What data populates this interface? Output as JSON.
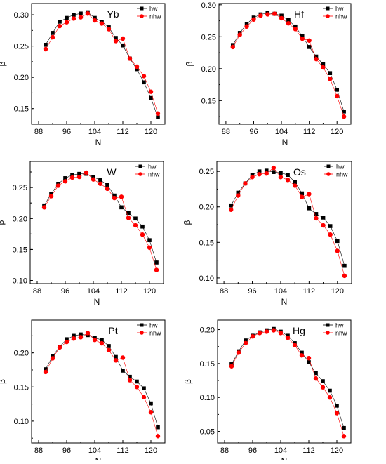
{
  "chart_data": [
    {
      "type": "line",
      "title": "Yb",
      "xlabel": "N",
      "ylabel": "β",
      "xlim": [
        86,
        124
      ],
      "ylim": [
        0.125,
        0.318
      ],
      "xticks": [
        88,
        96,
        104,
        112,
        120
      ],
      "yticks": [
        0.15,
        0.2,
        0.25,
        0.3
      ],
      "ytick_labels": [
        "0.15",
        "0.20",
        "0.25",
        "0.30"
      ],
      "legend": "top-right",
      "series": [
        {
          "name": "hw",
          "marker": "square",
          "color": "#000000",
          "x": [
            90,
            92,
            94,
            96,
            98,
            100,
            102,
            104,
            106,
            108,
            110,
            112,
            114,
            116,
            118,
            120,
            122
          ],
          "y": [
            0.252,
            0.271,
            0.289,
            0.295,
            0.3,
            0.302,
            0.304,
            0.295,
            0.289,
            0.28,
            0.263,
            0.251,
            0.23,
            0.213,
            0.192,
            0.167,
            0.136
          ]
        },
        {
          "name": "nhw",
          "marker": "circle",
          "color": "#ff0000",
          "x": [
            90,
            92,
            94,
            96,
            98,
            100,
            102,
            104,
            106,
            108,
            110,
            112,
            114,
            116,
            118,
            120,
            122
          ],
          "y": [
            0.245,
            0.264,
            0.282,
            0.288,
            0.294,
            0.296,
            0.302,
            0.291,
            0.286,
            0.277,
            0.258,
            0.262,
            0.23,
            0.217,
            0.202,
            0.177,
            0.142
          ]
        }
      ]
    },
    {
      "type": "line",
      "title": "Hf",
      "xlabel": "N",
      "ylabel": "β",
      "xlim": [
        86,
        124
      ],
      "ylim": [
        0.113,
        0.302
      ],
      "xticks": [
        88,
        96,
        104,
        112,
        120
      ],
      "yticks": [
        0.15,
        0.2,
        0.25,
        0.3
      ],
      "ytick_labels": [
        "0.15",
        "0.20",
        "0.25",
        "0.30"
      ],
      "legend": "top-right",
      "series": [
        {
          "name": "hw",
          "marker": "square",
          "color": "#000000",
          "x": [
            90,
            92,
            94,
            96,
            98,
            100,
            102,
            104,
            106,
            108,
            110,
            112,
            114,
            116,
            118,
            120,
            122
          ],
          "y": [
            0.237,
            0.256,
            0.27,
            0.28,
            0.285,
            0.287,
            0.286,
            0.283,
            0.276,
            0.266,
            0.251,
            0.234,
            0.219,
            0.207,
            0.193,
            0.167,
            0.133
          ]
        },
        {
          "name": "nhw",
          "marker": "circle",
          "color": "#ff0000",
          "x": [
            90,
            92,
            94,
            96,
            98,
            100,
            102,
            104,
            106,
            108,
            110,
            112,
            114,
            116,
            118,
            120,
            122
          ],
          "y": [
            0.234,
            0.253,
            0.266,
            0.277,
            0.283,
            0.285,
            0.286,
            0.279,
            0.271,
            0.262,
            0.247,
            0.244,
            0.215,
            0.202,
            0.184,
            0.157,
            0.125
          ]
        }
      ]
    },
    {
      "type": "line",
      "title": "W",
      "xlabel": "N",
      "ylabel": "β",
      "xlim": [
        86,
        124
      ],
      "ylim": [
        0.095,
        0.292
      ],
      "xticks": [
        88,
        96,
        104,
        112,
        120
      ],
      "yticks": [
        0.1,
        0.15,
        0.2,
        0.25
      ],
      "ytick_labels": [
        "0.10",
        "0.15",
        "0.20",
        "0.25"
      ],
      "legend": "top-right",
      "series": [
        {
          "name": "hw",
          "marker": "square",
          "color": "#000000",
          "x": [
            90,
            92,
            94,
            96,
            98,
            100,
            102,
            104,
            106,
            108,
            110,
            112,
            114,
            116,
            118,
            120,
            122
          ],
          "y": [
            0.221,
            0.24,
            0.256,
            0.265,
            0.27,
            0.272,
            0.272,
            0.267,
            0.262,
            0.254,
            0.237,
            0.218,
            0.209,
            0.2,
            0.187,
            0.165,
            0.129
          ]
        },
        {
          "name": "nhw",
          "marker": "circle",
          "color": "#ff0000",
          "x": [
            90,
            92,
            94,
            96,
            98,
            100,
            102,
            104,
            106,
            108,
            110,
            112,
            114,
            116,
            118,
            120,
            122
          ],
          "y": [
            0.218,
            0.236,
            0.253,
            0.26,
            0.266,
            0.267,
            0.274,
            0.263,
            0.256,
            0.248,
            0.233,
            0.235,
            0.201,
            0.189,
            0.174,
            0.153,
            0.117
          ]
        }
      ]
    },
    {
      "type": "line",
      "title": "Os",
      "xlabel": "N",
      "ylabel": "β",
      "xlim": [
        86,
        124
      ],
      "ylim": [
        0.092,
        0.264
      ],
      "xticks": [
        88,
        96,
        104,
        112,
        120
      ],
      "yticks": [
        0.1,
        0.15,
        0.2,
        0.25
      ],
      "ytick_labels": [
        "0.10",
        "0.15",
        "0.20",
        "0.25"
      ],
      "legend": "top-right",
      "series": [
        {
          "name": "hw",
          "marker": "square",
          "color": "#000000",
          "x": [
            90,
            92,
            94,
            96,
            98,
            100,
            102,
            104,
            106,
            108,
            110,
            112,
            114,
            116,
            118,
            120,
            122
          ],
          "y": [
            0.202,
            0.22,
            0.233,
            0.245,
            0.25,
            0.251,
            0.249,
            0.248,
            0.245,
            0.235,
            0.219,
            0.198,
            0.19,
            0.185,
            0.173,
            0.152,
            0.117
          ]
        },
        {
          "name": "nhw",
          "marker": "circle",
          "color": "#ff0000",
          "x": [
            90,
            92,
            94,
            96,
            98,
            100,
            102,
            104,
            106,
            108,
            110,
            112,
            114,
            116,
            118,
            120,
            122
          ],
          "y": [
            0.196,
            0.216,
            0.233,
            0.242,
            0.246,
            0.247,
            0.255,
            0.242,
            0.238,
            0.23,
            0.214,
            0.218,
            0.184,
            0.174,
            0.161,
            0.138,
            0.103
          ]
        }
      ]
    },
    {
      "type": "line",
      "title": "Pt",
      "xlabel": "N",
      "ylabel": "β",
      "xlim": [
        86,
        124
      ],
      "ylim": [
        0.068,
        0.248
      ],
      "xticks": [
        88,
        96,
        104,
        112,
        120
      ],
      "yticks": [
        0.1,
        0.15,
        0.2
      ],
      "ytick_labels": [
        "0.10",
        "0.15",
        "0.20"
      ],
      "legend": "top-right",
      "series": [
        {
          "name": "hw",
          "marker": "square",
          "color": "#000000",
          "x": [
            90,
            92,
            94,
            96,
            98,
            100,
            102,
            104,
            106,
            108,
            110,
            112,
            114,
            116,
            118,
            120,
            122
          ],
          "y": [
            0.176,
            0.195,
            0.209,
            0.22,
            0.225,
            0.227,
            0.226,
            0.222,
            0.219,
            0.21,
            0.194,
            0.174,
            0.165,
            0.158,
            0.148,
            0.126,
            0.091
          ]
        },
        {
          "name": "nhw",
          "marker": "circle",
          "color": "#ff0000",
          "x": [
            90,
            92,
            94,
            96,
            98,
            100,
            102,
            104,
            106,
            108,
            110,
            112,
            114,
            116,
            118,
            120,
            122
          ],
          "y": [
            0.172,
            0.192,
            0.208,
            0.216,
            0.221,
            0.223,
            0.229,
            0.219,
            0.214,
            0.204,
            0.189,
            0.193,
            0.16,
            0.15,
            0.135,
            0.113,
            0.078
          ]
        }
      ]
    },
    {
      "type": "line",
      "title": "Hg",
      "xlabel": "N",
      "ylabel": "β",
      "xlim": [
        86,
        124
      ],
      "ylim": [
        0.033,
        0.214
      ],
      "xticks": [
        88,
        96,
        104,
        112,
        120
      ],
      "yticks": [
        0.05,
        0.1,
        0.15,
        0.2
      ],
      "ytick_labels": [
        "0.05",
        "0.10",
        "0.15",
        "0.20"
      ],
      "legend": "top-right",
      "series": [
        {
          "name": "hw",
          "marker": "square",
          "color": "#000000",
          "x": [
            90,
            92,
            94,
            96,
            98,
            100,
            102,
            104,
            106,
            108,
            110,
            112,
            114,
            116,
            118,
            120,
            122
          ],
          "y": [
            0.149,
            0.168,
            0.184,
            0.191,
            0.196,
            0.199,
            0.201,
            0.197,
            0.191,
            0.18,
            0.166,
            0.152,
            0.136,
            0.124,
            0.11,
            0.088,
            0.055
          ]
        },
        {
          "name": "nhw",
          "marker": "circle",
          "color": "#ff0000",
          "x": [
            90,
            92,
            94,
            96,
            98,
            100,
            102,
            104,
            106,
            108,
            110,
            112,
            114,
            116,
            118,
            120,
            122
          ],
          "y": [
            0.146,
            0.166,
            0.18,
            0.19,
            0.195,
            0.197,
            0.199,
            0.195,
            0.188,
            0.177,
            0.162,
            0.158,
            0.128,
            0.115,
            0.1,
            0.077,
            0.043
          ]
        }
      ]
    }
  ]
}
